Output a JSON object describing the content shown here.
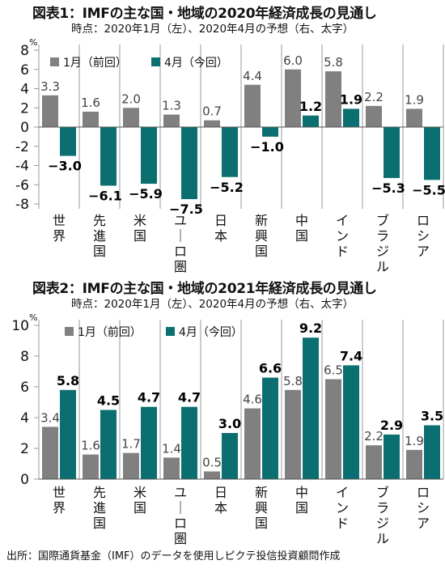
{
  "source": "出所：国際通貨基金（IMF）のデータを使用しピクテ投信投資顧問作成",
  "colors": {
    "prev": "#808080",
    "curr": "#0b6f71",
    "axis": "#999999",
    "grid": "#cfcfcf"
  },
  "chart_data": [
    {
      "type": "bar",
      "title": "図表1：IMFの主な国・地域の2020年経済成長の見通し",
      "subtitle": "時点：2020年1月（左）、2020年4月の予想（右、太字）",
      "unit": "%",
      "categories": [
        "世界",
        "先進国",
        "米国",
        "ユーロ圏",
        "日本",
        "新興国",
        "中国",
        "インド",
        "ブラジル",
        "ロシア"
      ],
      "series": [
        {
          "name": "1月（前回）",
          "values": [
            3.3,
            1.6,
            2.0,
            1.3,
            0.7,
            4.4,
            6.0,
            5.8,
            2.2,
            1.9
          ]
        },
        {
          "name": "4月（今回）",
          "values": [
            -3.0,
            -6.1,
            -5.9,
            -7.5,
            -5.2,
            -1.0,
            1.2,
            1.9,
            -5.3,
            -5.5
          ]
        }
      ],
      "value_labels_prev": [
        "3.3",
        "1.6",
        "2.0",
        "1.3",
        "0.7",
        "4.4",
        "6.0",
        "5.8",
        "2.2",
        "1.9"
      ],
      "value_labels_curr": [
        "−3.0",
        "−6.1",
        "−5.9",
        "−7.5",
        "−5.2",
        "−1.0",
        "1.2",
        "1.9",
        "−5.3",
        "−5.5"
      ],
      "yticks": [
        8,
        6,
        4,
        2,
        0,
        -2,
        -4,
        -6,
        -8
      ],
      "ytick_labels": [
        "8",
        "6",
        "4",
        "2",
        "0",
        "-2",
        "-4",
        "-6",
        "-8"
      ],
      "ylim": [
        -8,
        8
      ],
      "grid": false,
      "legend": "top"
    },
    {
      "type": "bar",
      "title": "図表2：IMFの主な国・地域の2021年経済成長の見通し",
      "subtitle": "時点：2020年1月（左）、2020年4月の予想（右、太字）",
      "unit": "%",
      "categories": [
        "世界",
        "先進国",
        "米国",
        "ユーロ圏",
        "日本",
        "新興国",
        "中国",
        "インド",
        "ブラジル",
        "ロシア"
      ],
      "series": [
        {
          "name": "1月（前回）",
          "values": [
            3.4,
            1.6,
            1.7,
            1.4,
            0.5,
            4.6,
            5.8,
            6.5,
            2.2,
            1.9
          ]
        },
        {
          "name": "4月（今回）",
          "values": [
            5.8,
            4.5,
            4.7,
            4.7,
            3.0,
            6.6,
            9.2,
            7.4,
            2.9,
            3.5
          ]
        }
      ],
      "value_labels_prev": [
        "3.4",
        "1.6",
        "1.7",
        "1.4",
        "0.5",
        "4.6",
        "5.8",
        "6.5",
        "2.2",
        "1.9"
      ],
      "value_labels_curr": [
        "5.8",
        "4.5",
        "4.7",
        "4.7",
        "3.0",
        "6.6",
        "9.2",
        "7.4",
        "2.9",
        "3.5"
      ],
      "yticks": [
        10,
        8,
        6,
        4,
        2,
        0
      ],
      "ytick_labels": [
        "10",
        "8",
        "6",
        "4",
        "2",
        "0"
      ],
      "ylim": [
        0,
        10
      ],
      "grid": false,
      "legend": "top"
    }
  ]
}
